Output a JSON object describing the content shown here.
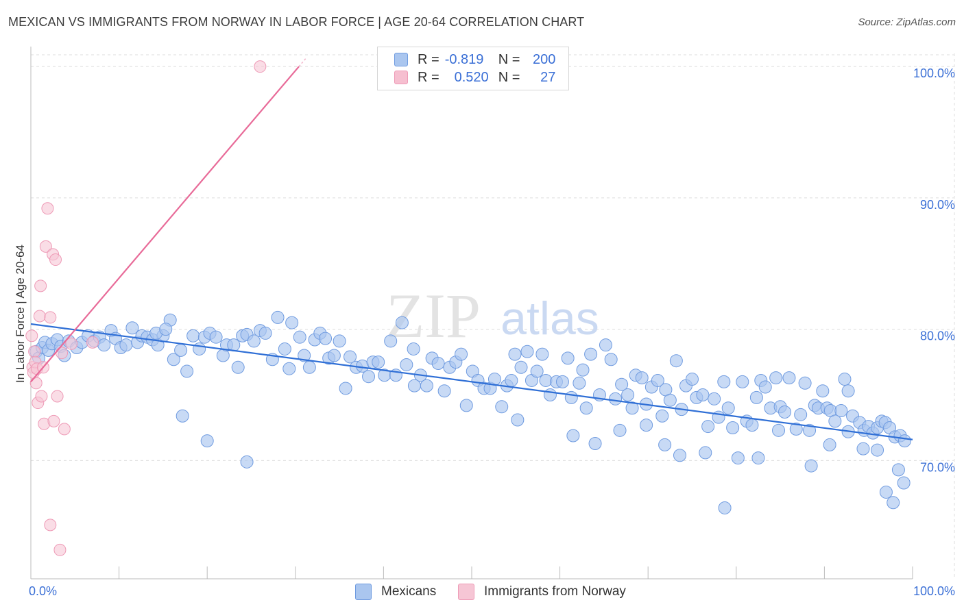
{
  "title": "MEXICAN VS IMMIGRANTS FROM NORWAY IN LABOR FORCE | AGE 20-64 CORRELATION CHART",
  "source": "Source: ZipAtlas.com",
  "watermark": {
    "zip": "ZIP",
    "atlas": "atlas"
  },
  "legend": {
    "rows": [
      {
        "r_label": "R =",
        "r_value": "-0.819",
        "n_label": "N =",
        "n_value": "200",
        "color": "#aac6ef"
      },
      {
        "r_label": "R =",
        "r_value": "0.520",
        "n_label": "N =",
        "n_value": "27",
        "color": "#f6bfd0"
      }
    ]
  },
  "bottom_legend": [
    {
      "label": "Mexicans",
      "color": "#aac6ef"
    },
    {
      "label": "Immigrants from Norway",
      "color": "#f6bfd0"
    }
  ],
  "chart_data": {
    "type": "scatter",
    "ylabel": "In Labor Force | Age 20-64",
    "xlim": [
      0,
      100
    ],
    "ylim": [
      61,
      101
    ],
    "x_tick_labels": [
      "0.0%",
      "100.0%"
    ],
    "y_ticks": [
      70,
      80,
      90,
      100
    ],
    "y_tick_labels": [
      "70.0%",
      "80.0%",
      "90.0%",
      "100.0%"
    ],
    "colors": {
      "blue_fill": "#aac6ef",
      "blue_stroke": "#6f9be0",
      "blue_line": "#2f6fd6",
      "pink_fill": "#f6c6d5",
      "pink_stroke": "#ee9ab6",
      "pink_line": "#e86a98",
      "axis_text": "#3a6fd6",
      "grid": "#dcdcdc"
    },
    "series": [
      {
        "name": "Mexicans",
        "trend": {
          "x": [
            0,
            100
          ],
          "y": [
            80.4,
            71.6
          ]
        },
        "points": [
          [
            0.6,
            78.3
          ],
          [
            0.9,
            77.8
          ],
          [
            1.3,
            78.6
          ],
          [
            1.6,
            79.0
          ],
          [
            2.0,
            78.4
          ],
          [
            2.4,
            78.9
          ],
          [
            3.0,
            79.2
          ],
          [
            3.4,
            78.7
          ],
          [
            3.8,
            78.0
          ],
          [
            4.3,
            79.1
          ],
          [
            5.2,
            78.6
          ],
          [
            5.8,
            79.0
          ],
          [
            6.5,
            79.5
          ],
          [
            7.2,
            79.1
          ],
          [
            7.8,
            79.4
          ],
          [
            8.3,
            78.8
          ],
          [
            9.1,
            79.9
          ],
          [
            9.6,
            79.3
          ],
          [
            10.2,
            78.6
          ],
          [
            10.8,
            78.8
          ],
          [
            11.5,
            80.1
          ],
          [
            12.1,
            79.0
          ],
          [
            12.6,
            79.5
          ],
          [
            13.2,
            79.4
          ],
          [
            13.8,
            79.2
          ],
          [
            14.4,
            78.8
          ],
          [
            15.0,
            79.5
          ],
          [
            15.8,
            80.7
          ],
          [
            14.2,
            79.7
          ],
          [
            15.3,
            80.0
          ],
          [
            16.2,
            77.7
          ],
          [
            17.0,
            78.4
          ],
          [
            17.7,
            76.8
          ],
          [
            18.4,
            79.5
          ],
          [
            19.1,
            78.5
          ],
          [
            19.7,
            79.4
          ],
          [
            20.3,
            79.7
          ],
          [
            21.0,
            79.4
          ],
          [
            21.8,
            78.0
          ],
          [
            22.2,
            78.8
          ],
          [
            23.0,
            78.8
          ],
          [
            23.5,
            77.1
          ],
          [
            24.0,
            79.5
          ],
          [
            24.5,
            79.6
          ],
          [
            25.3,
            79.1
          ],
          [
            26.0,
            79.9
          ],
          [
            26.6,
            79.7
          ],
          [
            27.4,
            77.7
          ],
          [
            28.0,
            80.9
          ],
          [
            28.8,
            78.5
          ],
          [
            29.3,
            77.0
          ],
          [
            29.6,
            80.5
          ],
          [
            30.5,
            79.4
          ],
          [
            31.0,
            78.0
          ],
          [
            31.6,
            77.1
          ],
          [
            32.2,
            79.2
          ],
          [
            32.8,
            79.7
          ],
          [
            33.4,
            79.3
          ],
          [
            33.8,
            77.8
          ],
          [
            34.4,
            78.0
          ],
          [
            35.0,
            79.1
          ],
          [
            35.7,
            75.5
          ],
          [
            36.2,
            77.9
          ],
          [
            36.9,
            77.1
          ],
          [
            37.6,
            77.2
          ],
          [
            38.3,
            76.4
          ],
          [
            38.8,
            77.5
          ],
          [
            39.4,
            77.5
          ],
          [
            40.1,
            76.5
          ],
          [
            40.8,
            79.1
          ],
          [
            41.4,
            76.5
          ],
          [
            42.1,
            80.5
          ],
          [
            42.6,
            77.3
          ],
          [
            43.4,
            78.5
          ],
          [
            44.2,
            76.5
          ],
          [
            44.9,
            75.7
          ],
          [
            45.5,
            77.8
          ],
          [
            46.2,
            77.4
          ],
          [
            46.9,
            75.3
          ],
          [
            47.5,
            77.1
          ],
          [
            48.2,
            77.5
          ],
          [
            48.8,
            78.1
          ],
          [
            49.4,
            74.2
          ],
          [
            50.1,
            76.8
          ],
          [
            50.7,
            76.1
          ],
          [
            51.4,
            75.5
          ],
          [
            52.1,
            75.5
          ],
          [
            52.6,
            76.2
          ],
          [
            53.4,
            74.1
          ],
          [
            54.0,
            75.7
          ],
          [
            54.5,
            76.1
          ],
          [
            54.9,
            78.1
          ],
          [
            55.6,
            77.1
          ],
          [
            56.3,
            78.3
          ],
          [
            56.8,
            76.1
          ],
          [
            57.4,
            76.8
          ],
          [
            58.0,
            78.1
          ],
          [
            58.4,
            76.1
          ],
          [
            58.9,
            75.0
          ],
          [
            59.6,
            76.0
          ],
          [
            60.3,
            76.0
          ],
          [
            60.9,
            77.8
          ],
          [
            61.3,
            74.8
          ],
          [
            62.2,
            75.9
          ],
          [
            62.6,
            76.9
          ],
          [
            63.0,
            74.0
          ],
          [
            63.5,
            78.1
          ],
          [
            64.0,
            71.3
          ],
          [
            64.5,
            75.0
          ],
          [
            65.2,
            78.8
          ],
          [
            65.8,
            77.7
          ],
          [
            66.3,
            74.7
          ],
          [
            67.0,
            75.8
          ],
          [
            67.7,
            75.0
          ],
          [
            68.2,
            74.0
          ],
          [
            68.6,
            76.5
          ],
          [
            69.3,
            76.3
          ],
          [
            69.8,
            74.3
          ],
          [
            70.4,
            75.6
          ],
          [
            71.1,
            76.1
          ],
          [
            71.6,
            73.4
          ],
          [
            72.0,
            75.4
          ],
          [
            72.5,
            74.6
          ],
          [
            73.2,
            77.6
          ],
          [
            73.8,
            73.9
          ],
          [
            74.3,
            75.7
          ],
          [
            75.0,
            76.2
          ],
          [
            75.5,
            74.8
          ],
          [
            76.2,
            75.0
          ],
          [
            76.8,
            72.6
          ],
          [
            77.5,
            74.7
          ],
          [
            78.0,
            73.3
          ],
          [
            78.6,
            76.0
          ],
          [
            79.1,
            74.0
          ],
          [
            79.6,
            72.5
          ],
          [
            80.2,
            70.2
          ],
          [
            80.7,
            76.0
          ],
          [
            81.2,
            73.0
          ],
          [
            81.8,
            72.7
          ],
          [
            82.3,
            74.8
          ],
          [
            82.8,
            76.1
          ],
          [
            83.3,
            75.6
          ],
          [
            83.9,
            74.0
          ],
          [
            84.5,
            76.3
          ],
          [
            85.0,
            74.1
          ],
          [
            85.5,
            73.7
          ],
          [
            86.0,
            76.3
          ],
          [
            86.8,
            72.4
          ],
          [
            87.3,
            73.5
          ],
          [
            87.8,
            75.9
          ],
          [
            88.3,
            72.3
          ],
          [
            88.9,
            74.2
          ],
          [
            89.3,
            74.0
          ],
          [
            89.8,
            75.3
          ],
          [
            90.3,
            74.0
          ],
          [
            90.7,
            73.8
          ],
          [
            91.2,
            73.0
          ],
          [
            91.9,
            73.8
          ],
          [
            92.3,
            76.2
          ],
          [
            92.7,
            75.3
          ],
          [
            93.2,
            73.4
          ],
          [
            94.0,
            72.9
          ],
          [
            94.5,
            72.3
          ],
          [
            95.0,
            72.6
          ],
          [
            95.5,
            72.1
          ],
          [
            96.0,
            72.5
          ],
          [
            96.5,
            73.0
          ],
          [
            96.9,
            72.9
          ],
          [
            97.4,
            72.5
          ],
          [
            98.0,
            71.8
          ],
          [
            98.6,
            71.9
          ],
          [
            99.1,
            71.5
          ],
          [
            17.2,
            73.4
          ],
          [
            20.0,
            71.5
          ],
          [
            24.5,
            69.9
          ],
          [
            43.5,
            75.7
          ],
          [
            55.2,
            73.1
          ],
          [
            61.5,
            71.9
          ],
          [
            66.8,
            72.3
          ],
          [
            69.8,
            72.7
          ],
          [
            71.9,
            71.2
          ],
          [
            73.6,
            70.4
          ],
          [
            76.5,
            70.6
          ],
          [
            78.7,
            66.4
          ],
          [
            82.5,
            70.2
          ],
          [
            84.8,
            72.3
          ],
          [
            88.5,
            69.6
          ],
          [
            90.6,
            71.2
          ],
          [
            92.7,
            72.2
          ],
          [
            94.4,
            70.9
          ],
          [
            96.0,
            70.8
          ],
          [
            97.0,
            67.6
          ],
          [
            97.8,
            66.8
          ],
          [
            98.4,
            69.3
          ],
          [
            99.0,
            68.3
          ]
        ]
      },
      {
        "name": "Immigrants from Norway",
        "trend": {
          "x": [
            0,
            30.4
          ],
          "y": [
            76.0,
            100.0
          ]
        },
        "points": [
          [
            0.1,
            79.5
          ],
          [
            0.2,
            77.1
          ],
          [
            0.3,
            76.7
          ],
          [
            0.4,
            78.3
          ],
          [
            0.5,
            77.5
          ],
          [
            0.6,
            75.9
          ],
          [
            0.7,
            77.0
          ],
          [
            0.8,
            74.4
          ],
          [
            1.0,
            81.0
          ],
          [
            1.1,
            83.3
          ],
          [
            1.2,
            74.9
          ],
          [
            1.4,
            77.1
          ],
          [
            1.5,
            72.8
          ],
          [
            1.7,
            86.3
          ],
          [
            1.9,
            89.2
          ],
          [
            2.2,
            80.9
          ],
          [
            2.5,
            85.7
          ],
          [
            2.6,
            73.0
          ],
          [
            2.8,
            85.3
          ],
          [
            3.0,
            74.9
          ],
          [
            3.5,
            78.2
          ],
          [
            3.8,
            72.4
          ],
          [
            4.6,
            78.9
          ],
          [
            26.0,
            100.0
          ],
          [
            2.2,
            65.1
          ],
          [
            3.3,
            63.2
          ],
          [
            7.0,
            79.0
          ]
        ]
      }
    ]
  }
}
